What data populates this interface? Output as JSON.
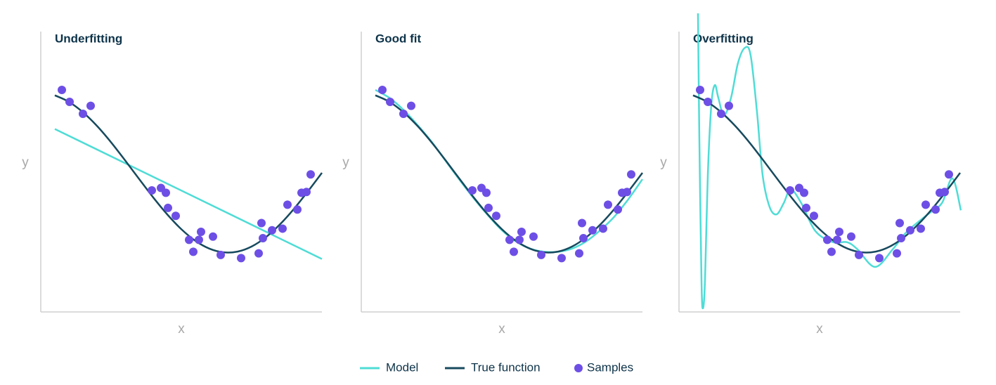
{
  "chart_data": [
    {
      "type": "line",
      "title": "Underfitting",
      "xlabel": "x",
      "ylabel": "y",
      "xlim": [
        0,
        1
      ],
      "ylim": [
        -1.75,
        1.75
      ],
      "series": [
        {
          "name": "Model",
          "color": "#4fdcd6",
          "x": [
            0.05,
            1.0
          ],
          "values": [
            0.55,
            -1.08
          ]
        },
        {
          "name": "True function",
          "color": "#174a5e",
          "x": [
            0.05,
            0.1,
            0.15,
            0.2,
            0.25,
            0.3,
            0.35,
            0.4,
            0.45,
            0.5,
            0.55,
            0.6,
            0.65,
            0.7,
            0.75,
            0.8,
            0.85,
            0.9,
            0.95,
            1.0
          ],
          "values": [
            0.972,
            0.891,
            0.76,
            0.588,
            0.383,
            0.156,
            -0.078,
            -0.309,
            -0.522,
            -0.707,
            -0.853,
            -0.951,
            -0.997,
            -0.988,
            -0.924,
            -0.809,
            -0.649,
            -0.454,
            -0.233,
            0.0
          ]
        },
        {
          "name": "Samples",
          "type": "scatter",
          "color": "#6d4fe6",
          "x": [
            0.075,
            0.1025,
            0.15,
            0.1775,
            0.395,
            0.4275,
            0.445,
            0.4525,
            0.48,
            0.5275,
            0.5425,
            0.5625,
            0.57,
            0.6125,
            0.64,
            0.7125,
            0.775,
            0.785,
            0.79,
            0.8225,
            0.86,
            0.8775,
            0.9125,
            0.9275,
            0.945,
            0.96
          ],
          "values": [
            1.04,
            0.89,
            0.74,
            0.84,
            -0.22,
            -0.19,
            -0.25,
            -0.44,
            -0.54,
            -0.84,
            -0.99,
            -0.84,
            -0.74,
            -0.8,
            -1.03,
            -1.07,
            -1.01,
            -0.63,
            -0.82,
            -0.72,
            -0.7,
            -0.4,
            -0.46,
            -0.25,
            -0.24,
            -0.02
          ]
        }
      ]
    },
    {
      "type": "line",
      "title": "Good fit",
      "xlabel": "x",
      "ylabel": "y",
      "xlim": [
        0,
        1
      ],
      "ylim": [
        -1.75,
        1.75
      ],
      "series": [
        {
          "name": "Model",
          "color": "#4fdcd6",
          "x": [
            0.05,
            0.1,
            0.15,
            0.2,
            0.25,
            0.3,
            0.35,
            0.4,
            0.45,
            0.5,
            0.55,
            0.6,
            0.65,
            0.7,
            0.75,
            0.8,
            0.85,
            0.9,
            0.95,
            1.0
          ],
          "values": [
            1.04,
            0.94,
            0.79,
            0.6,
            0.39,
            0.15,
            -0.09,
            -0.32,
            -0.53,
            -0.72,
            -0.86,
            -0.95,
            -0.99,
            -0.99,
            -0.95,
            -0.86,
            -0.72,
            -0.55,
            -0.33,
            -0.08
          ]
        },
        {
          "name": "True function",
          "color": "#174a5e",
          "x": [
            0.05,
            0.1,
            0.15,
            0.2,
            0.25,
            0.3,
            0.35,
            0.4,
            0.45,
            0.5,
            0.55,
            0.6,
            0.65,
            0.7,
            0.75,
            0.8,
            0.85,
            0.9,
            0.95,
            1.0
          ],
          "values": [
            0.972,
            0.891,
            0.76,
            0.588,
            0.383,
            0.156,
            -0.078,
            -0.309,
            -0.522,
            -0.707,
            -0.853,
            -0.951,
            -0.997,
            -0.988,
            -0.924,
            -0.809,
            -0.649,
            -0.454,
            -0.233,
            0.0
          ]
        },
        {
          "name": "Samples",
          "type": "scatter",
          "color": "#6d4fe6",
          "x": [
            0.075,
            0.1025,
            0.15,
            0.1775,
            0.395,
            0.4275,
            0.445,
            0.4525,
            0.48,
            0.5275,
            0.5425,
            0.5625,
            0.57,
            0.6125,
            0.64,
            0.7125,
            0.775,
            0.785,
            0.79,
            0.8225,
            0.86,
            0.8775,
            0.9125,
            0.9275,
            0.945,
            0.96
          ],
          "values": [
            1.04,
            0.89,
            0.74,
            0.84,
            -0.22,
            -0.19,
            -0.25,
            -0.44,
            -0.54,
            -0.84,
            -0.99,
            -0.84,
            -0.74,
            -0.8,
            -1.03,
            -1.07,
            -1.01,
            -0.63,
            -0.82,
            -0.72,
            -0.7,
            -0.4,
            -0.46,
            -0.25,
            -0.24,
            -0.02
          ]
        }
      ]
    },
    {
      "type": "line",
      "title": "Overfitting",
      "xlabel": "x",
      "ylabel": "y",
      "xlim": [
        0,
        1
      ],
      "ylim": [
        -1.75,
        1.75
      ],
      "series": [
        {
          "name": "Model",
          "color": "#4fdcd6",
          "x": [
            0.0675,
            0.0725,
            0.08,
            0.085,
            0.0925,
            0.1025,
            0.115,
            0.1275,
            0.14,
            0.16,
            0.185,
            0.21,
            0.235,
            0.255,
            0.2775,
            0.2975,
            0.3225,
            0.3475,
            0.3725,
            0.3975,
            0.435,
            0.485,
            0.5475,
            0.5975,
            0.635,
            0.6975,
            0.76,
            0.81,
            0.885,
            0.935,
            0.9725,
            1.0025
          ],
          "values": [
            2.0,
            0.41,
            -1.35,
            -1.7,
            -1.35,
            -0.03,
            0.85,
            1.1,
            0.94,
            0.72,
            0.94,
            1.38,
            1.57,
            1.47,
            0.76,
            -0.03,
            -0.43,
            -0.52,
            -0.38,
            -0.21,
            -0.38,
            -0.73,
            -0.87,
            -0.87,
            -0.96,
            -1.18,
            -0.96,
            -0.74,
            -0.52,
            -0.38,
            -0.07,
            -0.47
          ]
        },
        {
          "name": "True function",
          "color": "#174a5e",
          "x": [
            0.05,
            0.1,
            0.15,
            0.2,
            0.25,
            0.3,
            0.35,
            0.4,
            0.45,
            0.5,
            0.55,
            0.6,
            0.65,
            0.7,
            0.75,
            0.8,
            0.85,
            0.9,
            0.95,
            1.0
          ],
          "values": [
            0.972,
            0.891,
            0.76,
            0.588,
            0.383,
            0.156,
            -0.078,
            -0.309,
            -0.522,
            -0.707,
            -0.853,
            -0.951,
            -0.997,
            -0.988,
            -0.924,
            -0.809,
            -0.649,
            -0.454,
            -0.233,
            0.0
          ]
        },
        {
          "name": "Samples",
          "type": "scatter",
          "color": "#6d4fe6",
          "x": [
            0.075,
            0.1025,
            0.15,
            0.1775,
            0.395,
            0.4275,
            0.445,
            0.4525,
            0.48,
            0.5275,
            0.5425,
            0.5625,
            0.57,
            0.6125,
            0.64,
            0.7125,
            0.775,
            0.785,
            0.79,
            0.8225,
            0.86,
            0.8775,
            0.9125,
            0.9275,
            0.945,
            0.96
          ],
          "values": [
            1.04,
            0.89,
            0.74,
            0.84,
            -0.22,
            -0.19,
            -0.25,
            -0.44,
            -0.54,
            -0.84,
            -0.99,
            -0.84,
            -0.74,
            -0.8,
            -1.03,
            -1.07,
            -1.01,
            -0.63,
            -0.82,
            -0.72,
            -0.7,
            -0.4,
            -0.46,
            -0.25,
            -0.24,
            -0.02
          ]
        }
      ]
    }
  ]
}
